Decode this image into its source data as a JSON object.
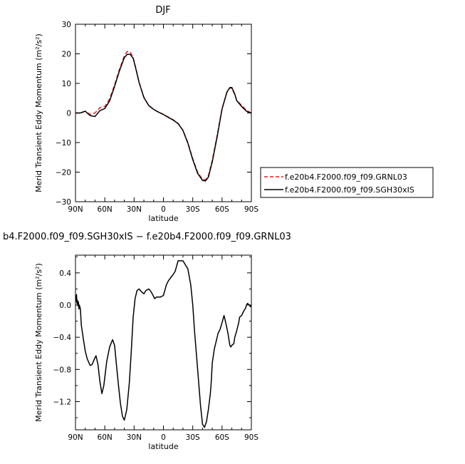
{
  "chart_data": [
    {
      "type": "line",
      "title": "DJF",
      "xlabel": "latitude",
      "ylabel": "Merid Transient Eddy Momentum (m²/s²)",
      "xlim": [
        90,
        -90
      ],
      "ylim": [
        -30,
        30
      ],
      "yticks": [
        30,
        20,
        10,
        0,
        -10,
        -20,
        -30
      ],
      "ytick_labels": [
        "30",
        "20",
        "10",
        "0",
        "−10",
        "−20",
        "−30"
      ],
      "xticks": [
        90,
        60,
        30,
        0,
        -30,
        -60,
        -90
      ],
      "xtick_labels": [
        "90N",
        "60N",
        "30N",
        "0",
        "30S",
        "60S",
        "90S"
      ],
      "legend_position": "right",
      "series": [
        {
          "name": "f.e20b4.F2000.f09_f09.GRNL03",
          "color": "#e3201b",
          "dash": "dashed",
          "x": [
            90,
            85,
            80,
            75,
            70,
            65,
            60,
            55,
            50,
            45,
            40,
            37,
            34,
            31,
            28,
            25,
            20,
            15,
            10,
            5,
            0,
            -5,
            -10,
            -15,
            -20,
            -25,
            -30,
            -35,
            -40,
            -43,
            -46,
            -50,
            -55,
            -60,
            -65,
            -68,
            -70,
            -73,
            -75,
            -80,
            -85,
            -90
          ],
          "y": [
            0,
            0,
            0.6,
            -0.5,
            0,
            1.8,
            2.2,
            4.8,
            9.5,
            14.8,
            19.3,
            20.8,
            20.6,
            18.7,
            14.8,
            10.5,
            5.2,
            2.5,
            1.2,
            0.3,
            -0.5,
            -1.4,
            -2.3,
            -3.5,
            -5.8,
            -10,
            -15.5,
            -20,
            -22.5,
            -22.6,
            -21.2,
            -16,
            -7.5,
            1.5,
            7,
            8.5,
            8.3,
            6.2,
            4.2,
            2.6,
            0.9,
            0
          ]
        },
        {
          "name": "f.e20b4.F2000.f09_f09.SGH30xIS",
          "color": "#000000",
          "dash": "solid",
          "x": [
            90,
            85,
            80,
            75,
            70,
            65,
            60,
            55,
            50,
            45,
            40,
            37,
            34,
            31,
            28,
            25,
            20,
            15,
            10,
            5,
            0,
            -5,
            -10,
            -15,
            -20,
            -25,
            -30,
            -35,
            -40,
            -43,
            -46,
            -50,
            -55,
            -60,
            -65,
            -68,
            -70,
            -73,
            -75,
            -80,
            -85,
            -90
          ],
          "y": [
            0,
            0,
            0.6,
            -0.9,
            -1.2,
            0.8,
            1.5,
            4.1,
            9,
            14.3,
            18.7,
            19.8,
            19.8,
            18.5,
            14.6,
            10.4,
            5.2,
            2.5,
            1.2,
            0.3,
            -0.5,
            -1.5,
            -2.4,
            -3.6,
            -5.9,
            -10.2,
            -15.8,
            -20.4,
            -22.8,
            -23,
            -21.7,
            -16.5,
            -8,
            1.3,
            7.1,
            8.6,
            8.6,
            6.4,
            4.2,
            2.2,
            0.6,
            -0.1
          ]
        }
      ]
    },
    {
      "type": "line",
      "title": "b4.F2000.f09_f09.SGH30xIS − f.e20b4.F2000.f09_f09.GRNL03",
      "xlabel": "latitude",
      "ylabel": "Merid Transient Eddy Momentum (m²/s²)",
      "xlim": [
        90,
        -90
      ],
      "ylim": [
        -1.55,
        0.62
      ],
      "yticks": [
        0.4,
        0,
        -0.4,
        -0.8,
        -1.2
      ],
      "ytick_labels": [
        "0.4",
        "0.0",
        "−0.4",
        "−0.8",
        "−1.2"
      ],
      "xticks": [
        90,
        60,
        30,
        0,
        -30,
        -60,
        -90
      ],
      "xtick_labels": [
        "90N",
        "60N",
        "30N",
        "0",
        "30S",
        "60S",
        "90S"
      ],
      "series": [
        {
          "color": "#000000",
          "dash": "solid",
          "x": [
            90,
            89.5,
            89,
            88.5,
            88,
            87.5,
            87,
            86.5,
            86,
            85,
            84,
            82,
            80,
            78,
            75,
            73,
            71,
            69,
            67,
            65,
            63,
            61,
            58,
            55,
            52,
            50,
            48,
            46,
            44,
            42,
            40,
            37.5,
            35,
            33,
            31,
            29,
            27,
            25,
            22,
            20,
            18,
            15,
            13,
            11,
            9,
            7,
            5,
            3,
            0,
            -3,
            -5,
            -8,
            -10,
            -12,
            -15,
            -20,
            -25,
            -28,
            -30,
            -32,
            -34,
            -36,
            -38,
            -40,
            -42,
            -44,
            -46,
            -48,
            -49,
            -50,
            -52,
            -54,
            -56,
            -58,
            -60,
            -62,
            -64,
            -66,
            -68,
            -69,
            -70,
            -72,
            -73,
            -75,
            -77,
            -78,
            -79,
            -80,
            -82,
            -84,
            -85,
            -86,
            -88,
            -89,
            -90
          ],
          "y": [
            0.12,
            0.05,
            0.13,
            0.02,
            0.06,
            -0.01,
            0.04,
            -0.05,
            0,
            -0.05,
            -0.25,
            -0.42,
            -0.57,
            -0.67,
            -0.75,
            -0.74,
            -0.68,
            -0.63,
            -0.74,
            -0.95,
            -1.1,
            -1.0,
            -0.7,
            -0.52,
            -0.43,
            -0.5,
            -0.75,
            -1.0,
            -1.22,
            -1.38,
            -1.43,
            -1.3,
            -0.98,
            -0.6,
            -0.15,
            0.08,
            0.18,
            0.2,
            0.16,
            0.14,
            0.18,
            0.2,
            0.17,
            0.13,
            0.08,
            0.1,
            0.1,
            0.1,
            0.12,
            0.25,
            0.3,
            0.35,
            0.38,
            0.42,
            0.55,
            0.55,
            0.45,
            0.25,
            0.0,
            -0.35,
            -0.65,
            -0.95,
            -1.25,
            -1.48,
            -1.52,
            -1.45,
            -1.3,
            -1.1,
            -0.95,
            -0.72,
            -0.55,
            -0.45,
            -0.35,
            -0.3,
            -0.22,
            -0.13,
            -0.23,
            -0.35,
            -0.5,
            -0.52,
            -0.5,
            -0.48,
            -0.4,
            -0.32,
            -0.22,
            -0.15,
            -0.14,
            -0.13,
            -0.08,
            -0.04,
            0.0,
            0.02,
            0.0,
            -0.02,
            0.0
          ]
        }
      ]
    }
  ]
}
